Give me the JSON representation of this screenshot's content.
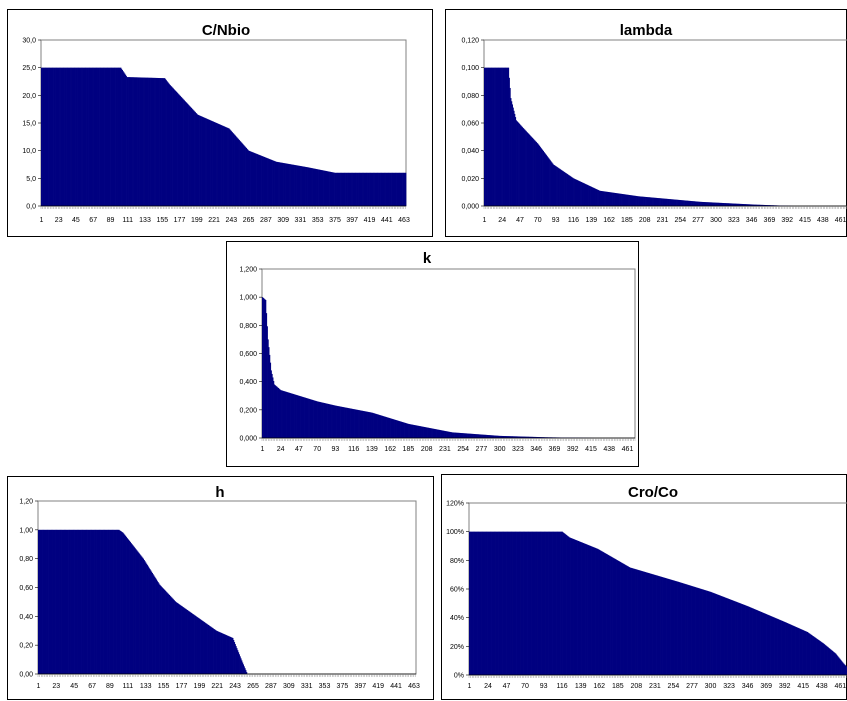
{
  "colors": {
    "bar": "#000080",
    "frame": "#808080",
    "grid": "#c0c0c0"
  },
  "chart_data": [
    {
      "type": "bar",
      "title": "C/Nbio",
      "ylim": [
        0,
        30
      ],
      "yticks": [
        "0,0",
        "5,0",
        "10,0",
        "15,0",
        "20,0",
        "25,0",
        "30,0"
      ],
      "xticks": [
        "1",
        "23",
        "45",
        "67",
        "89",
        "111",
        "133",
        "155",
        "177",
        "199",
        "221",
        "243",
        "265",
        "287",
        "309",
        "331",
        "353",
        "375",
        "397",
        "419",
        "441",
        "463"
      ],
      "n_bars": 465,
      "profile_x": [
        1,
        102,
        110,
        158,
        164,
        200,
        240,
        265,
        300,
        340,
        375,
        463
      ],
      "profile_y": [
        25.0,
        25.0,
        23.3,
        23.1,
        22.0,
        16.5,
        14.0,
        10.0,
        8.0,
        7.0,
        6.0,
        6.0
      ],
      "grid": false
    },
    {
      "type": "bar",
      "title": "lambda",
      "ylim": [
        0,
        0.12
      ],
      "yticks": [
        "0,000",
        "0,020",
        "0,040",
        "0,060",
        "0,080",
        "0,100",
        "0,120"
      ],
      "xticks": [
        "1",
        "24",
        "47",
        "70",
        "93",
        "116",
        "139",
        "162",
        "185",
        "208",
        "231",
        "254",
        "277",
        "300",
        "323",
        "346",
        "369",
        "392",
        "415",
        "438",
        "461"
      ],
      "n_bars": 470,
      "profile_x": [
        1,
        32,
        35,
        42,
        50,
        70,
        90,
        116,
        150,
        200,
        280,
        350,
        400,
        470
      ],
      "profile_y": [
        0.1,
        0.1,
        0.078,
        0.062,
        0.057,
        0.045,
        0.03,
        0.02,
        0.011,
        0.007,
        0.003,
        0.001,
        0.0,
        0.0
      ],
      "grid": false
    },
    {
      "type": "bar",
      "title": "k",
      "ylim": [
        0,
        1.2
      ],
      "yticks": [
        "0,000",
        "0,200",
        "0,400",
        "0,600",
        "0,800",
        "1,000",
        "1,200"
      ],
      "xticks": [
        "1",
        "24",
        "47",
        "70",
        "93",
        "116",
        "139",
        "162",
        "185",
        "208",
        "231",
        "254",
        "277",
        "300",
        "323",
        "346",
        "369",
        "392",
        "415",
        "438",
        "461"
      ],
      "n_bars": 470,
      "profile_x": [
        1,
        5,
        8,
        12,
        16,
        24,
        47,
        70,
        93,
        139,
        185,
        240,
        300,
        360,
        420,
        470
      ],
      "profile_y": [
        1.0,
        0.98,
        0.7,
        0.48,
        0.38,
        0.34,
        0.3,
        0.26,
        0.23,
        0.18,
        0.1,
        0.04,
        0.015,
        0.005,
        0.0,
        0.0
      ],
      "grid": false
    },
    {
      "type": "bar",
      "title": "h",
      "ylim": [
        0,
        1.2
      ],
      "yticks": [
        "0,00",
        "0,20",
        "0,40",
        "0,60",
        "0,80",
        "1,00",
        "1,20"
      ],
      "xticks": [
        "1",
        "23",
        "45",
        "67",
        "89",
        "111",
        "133",
        "155",
        "177",
        "199",
        "221",
        "243",
        "265",
        "287",
        "309",
        "331",
        "353",
        "375",
        "397",
        "419",
        "441",
        "463"
      ],
      "n_bars": 465,
      "profile_x": [
        1,
        100,
        105,
        130,
        150,
        170,
        200,
        220,
        240,
        252,
        258,
        465
      ],
      "profile_y": [
        1.0,
        1.0,
        0.98,
        0.8,
        0.62,
        0.5,
        0.38,
        0.3,
        0.25,
        0.08,
        0.0,
        0.0
      ],
      "grid": false
    },
    {
      "type": "bar",
      "title": "Cro/Co",
      "ylim": [
        0,
        120
      ],
      "yticks": [
        "0%",
        "20%",
        "40%",
        "60%",
        "80%",
        "100%",
        "120%"
      ],
      "xticks": [
        "1",
        "24",
        "47",
        "70",
        "93",
        "116",
        "139",
        "162",
        "185",
        "208",
        "231",
        "254",
        "277",
        "300",
        "323",
        "346",
        "369",
        "392",
        "415",
        "438",
        "461"
      ],
      "n_bars": 470,
      "profile_x": [
        1,
        116,
        125,
        160,
        200,
        260,
        300,
        346,
        392,
        420,
        440,
        455,
        465,
        470
      ],
      "profile_y": [
        100,
        100,
        96,
        88,
        75,
        65,
        58,
        48,
        37,
        30,
        22,
        15,
        8,
        5
      ],
      "grid": false
    }
  ]
}
